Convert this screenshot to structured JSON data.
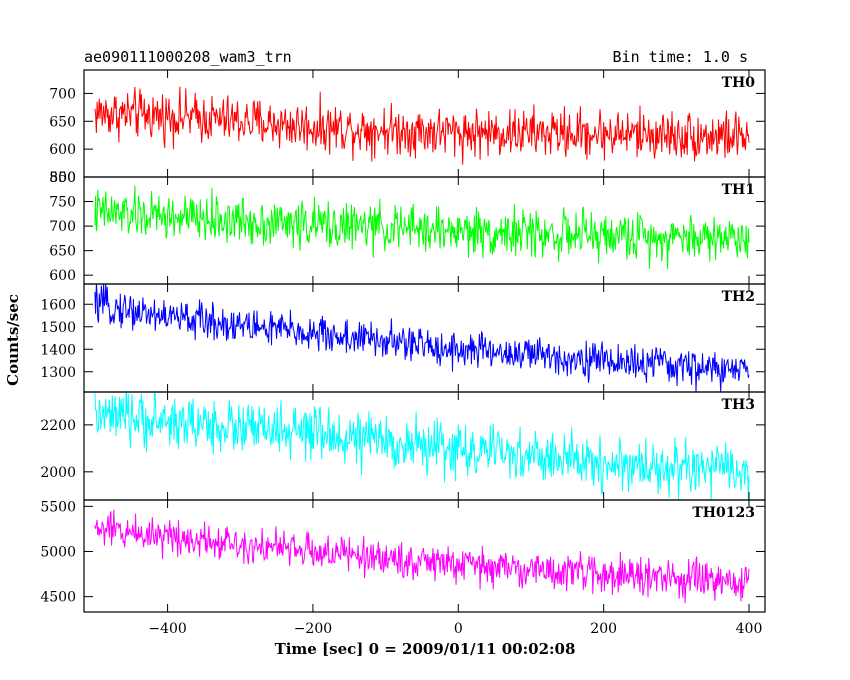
{
  "header": {
    "title": "ae090111000208_wam3_trn",
    "bin_time": "Bin time: 1.0 s"
  },
  "chart_data": {
    "type": "line",
    "title": "ae090111000208_wam3_trn",
    "xlabel": "Time [sec] 0 = 2009/01/11 00:02:08",
    "ylabel": "Counts/sec",
    "xlim": [
      -515,
      422
    ],
    "x_ticks": [
      -400,
      -200,
      0,
      200,
      400
    ],
    "x_tick_labels": [
      "−400",
      "−200",
      "0",
      "200",
      "400"
    ],
    "x_range_data": [
      -500,
      400
    ],
    "bin_time_s": 1.0,
    "panels": [
      {
        "name": "TH0",
        "color": "#ff0000",
        "ylim": [
          550,
          742
        ],
        "y_ticks": [
          550,
          600,
          650,
          700
        ],
        "trend": [
          [
            -500,
            665
          ],
          [
            -400,
            660
          ],
          [
            -200,
            640
          ],
          [
            0,
            630
          ],
          [
            200,
            628
          ],
          [
            400,
            622
          ]
        ],
        "noise_amplitude": 35
      },
      {
        "name": "TH1",
        "color": "#00ff00",
        "ylim": [
          582,
          800
        ],
        "y_ticks": [
          600,
          650,
          700,
          750,
          800
        ],
        "trend": [
          [
            -500,
            728
          ],
          [
            -400,
            718
          ],
          [
            -200,
            703
          ],
          [
            0,
            690
          ],
          [
            200,
            680
          ],
          [
            400,
            677
          ]
        ],
        "noise_amplitude": 38
      },
      {
        "name": "TH2",
        "color": "#0000ff",
        "ylim": [
          1210,
          1690
        ],
        "y_ticks": [
          1300,
          1400,
          1500,
          1600
        ],
        "trend": [
          [
            -500,
            1600
          ],
          [
            -400,
            1545
          ],
          [
            -200,
            1470
          ],
          [
            0,
            1400
          ],
          [
            200,
            1350
          ],
          [
            400,
            1300
          ]
        ],
        "noise_amplitude": 65
      },
      {
        "name": "TH3",
        "color": "#00ffff",
        "ylim": [
          1880,
          2340
        ],
        "y_ticks": [
          2000,
          2200
        ],
        "trend": [
          [
            -500,
            2235
          ],
          [
            -400,
            2215
          ],
          [
            -200,
            2160
          ],
          [
            0,
            2095
          ],
          [
            200,
            2035
          ],
          [
            400,
            2000
          ]
        ],
        "noise_amplitude": 90
      },
      {
        "name": "TH0123",
        "color": "#ff00ff",
        "ylim": [
          4330,
          5570
        ],
        "y_ticks": [
          4500,
          5000,
          5500
        ],
        "trend": [
          [
            -500,
            5250
          ],
          [
            -400,
            5180
          ],
          [
            -200,
            5000
          ],
          [
            0,
            4850
          ],
          [
            200,
            4750
          ],
          [
            400,
            4640
          ]
        ],
        "noise_amplitude": 160
      }
    ]
  }
}
